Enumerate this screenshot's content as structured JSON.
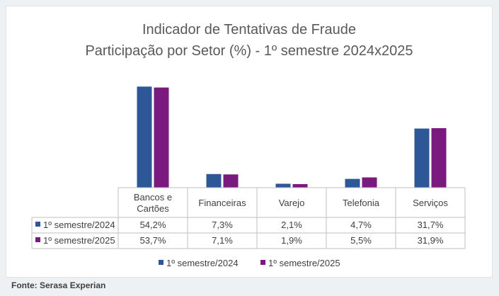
{
  "chart_data": {
    "type": "bar",
    "title": "Indicador de Tentativas de Fraude",
    "subtitle": "Participação por Setor (%) - 1º semestre 2024x2025",
    "categories": [
      "Bancos e Cartões",
      "Financeiras",
      "Varejo",
      "Telefonia",
      "Serviços"
    ],
    "category_lines": [
      [
        "Bancos e",
        "Cartões"
      ],
      [
        "Financeiras"
      ],
      [
        "Varejo"
      ],
      [
        "Telefonia"
      ],
      [
        "Serviços"
      ]
    ],
    "series": [
      {
        "name": "1º semestre/2024",
        "color": "#2e5797",
        "values": [
          54.2,
          7.3,
          2.1,
          4.7,
          31.7
        ],
        "labels": [
          "54,2%",
          "7,3%",
          "2,1%",
          "4,7%",
          "31,7%"
        ]
      },
      {
        "name": "1º semestre/2025",
        "color": "#7a1a7e",
        "values": [
          53.7,
          7.1,
          1.9,
          5.5,
          31.9
        ],
        "labels": [
          "53,7%",
          "7,1%",
          "1,9%",
          "5,5%",
          "31,9%"
        ]
      }
    ],
    "ylim": [
      0,
      60
    ],
    "grid": false,
    "data_table": true,
    "legend_position": "bottom"
  },
  "source_note": "Fonte: Serasa Experian"
}
